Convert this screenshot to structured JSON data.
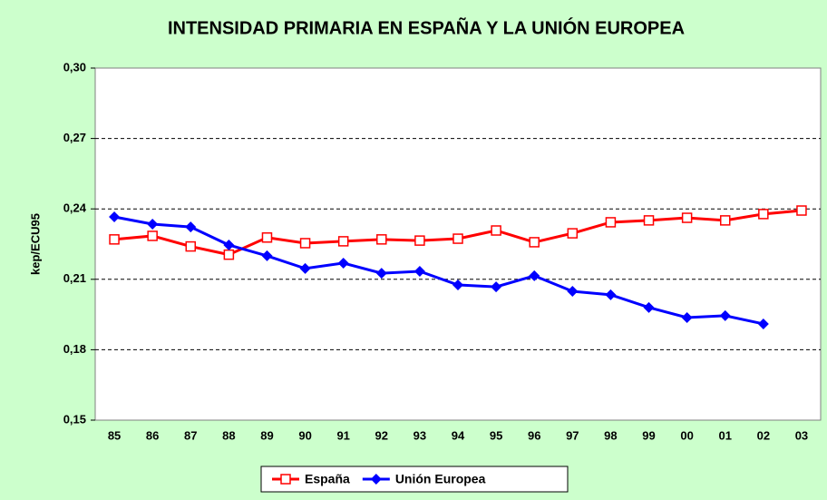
{
  "chart_data": {
    "type": "line",
    "title": "INTENSIDAD PRIMARIA EN ESPAÑA Y LA UNIÓN EUROPEA",
    "y_label": "kep/ECU95",
    "categories": [
      "85",
      "86",
      "87",
      "88",
      "89",
      "90",
      "91",
      "92",
      "93",
      "94",
      "95",
      "96",
      "97",
      "98",
      "99",
      "00",
      "01",
      "02",
      "03"
    ],
    "series": [
      {
        "name": "España",
        "color": "#ff0000",
        "marker": "square-open",
        "values": [
          0.227,
          0.2285,
          0.224,
          0.2205,
          0.2278,
          0.2254,
          0.2262,
          0.227,
          0.2265,
          0.2273,
          0.2308,
          0.2258,
          0.2296,
          0.2343,
          0.2351,
          0.2362,
          0.2351,
          0.2378,
          0.2393
        ]
      },
      {
        "name": "Unión Europea",
        "color": "#0000ff",
        "marker": "diamond",
        "values": [
          0.2366,
          0.2335,
          0.2323,
          0.2246,
          0.22,
          0.2146,
          0.2169,
          0.2126,
          0.2134,
          0.2076,
          0.2068,
          0.2115,
          0.2049,
          0.2034,
          0.198,
          0.1937,
          0.1945,
          0.191,
          null
        ]
      }
    ],
    "ylim": [
      0.15,
      0.3
    ],
    "yticks": [
      {
        "value": 0.15,
        "label": "0,15"
      },
      {
        "value": 0.18,
        "label": "0,18"
      },
      {
        "value": 0.21,
        "label": "0,21"
      },
      {
        "value": 0.24,
        "label": "0,24"
      },
      {
        "value": 0.27,
        "label": "0,27"
      },
      {
        "value": 0.3,
        "label": "0,30"
      }
    ],
    "grid": true,
    "legend": "bottom"
  }
}
